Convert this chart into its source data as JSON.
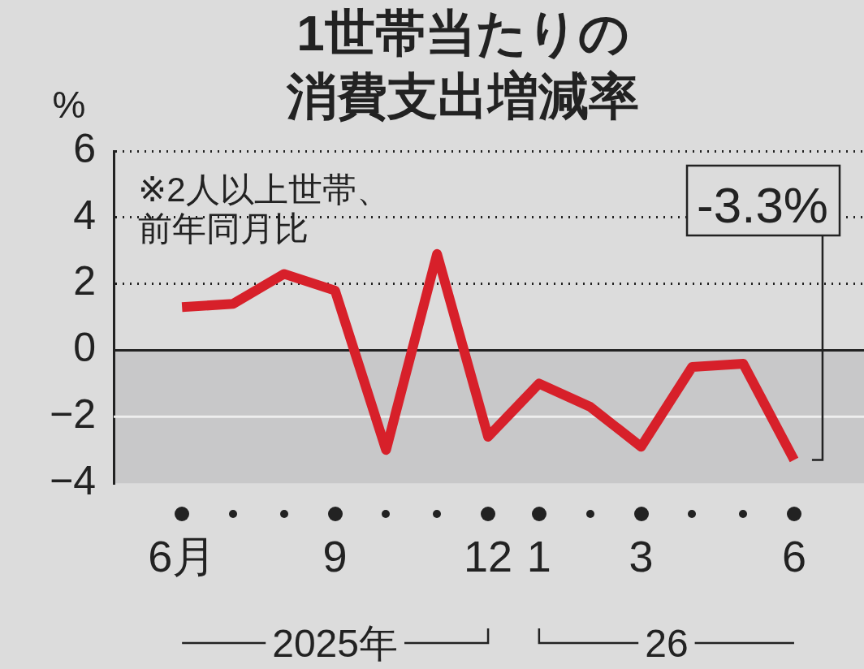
{
  "chart_data": {
    "type": "line",
    "title": "1世帯当たりの消費支出増減率",
    "ylabel": "%",
    "categories": [
      "6月",
      null,
      null,
      "9",
      null,
      null,
      "12",
      "1",
      null,
      "3",
      null,
      null,
      "6"
    ],
    "series": [
      {
        "color": "#d7202a",
        "values": [
          1.3,
          1.4,
          2.3,
          1.8,
          -3.0,
          2.9,
          -2.6,
          -1.0,
          -1.7,
          -2.9,
          -0.5,
          -0.4,
          -3.3
        ]
      }
    ],
    "ylim": [
      -4,
      6
    ],
    "yticks": [
      -4,
      -2,
      0,
      2,
      4,
      6
    ],
    "grid": "y",
    "legend": false,
    "marker": "none",
    "line_style": "solid",
    "bands": [
      {
        "axis": "y",
        "from": -4,
        "to": 0,
        "color": "#c8c8c9"
      }
    ],
    "ref_lines": [
      {
        "axis": "y",
        "value": -2,
        "color": "#eeeeee",
        "line_style": "solid"
      }
    ],
    "annotations": [
      "※2人以上世帯、前年同月比",
      "2025年",
      "26",
      "-3.3%"
    ]
  }
}
